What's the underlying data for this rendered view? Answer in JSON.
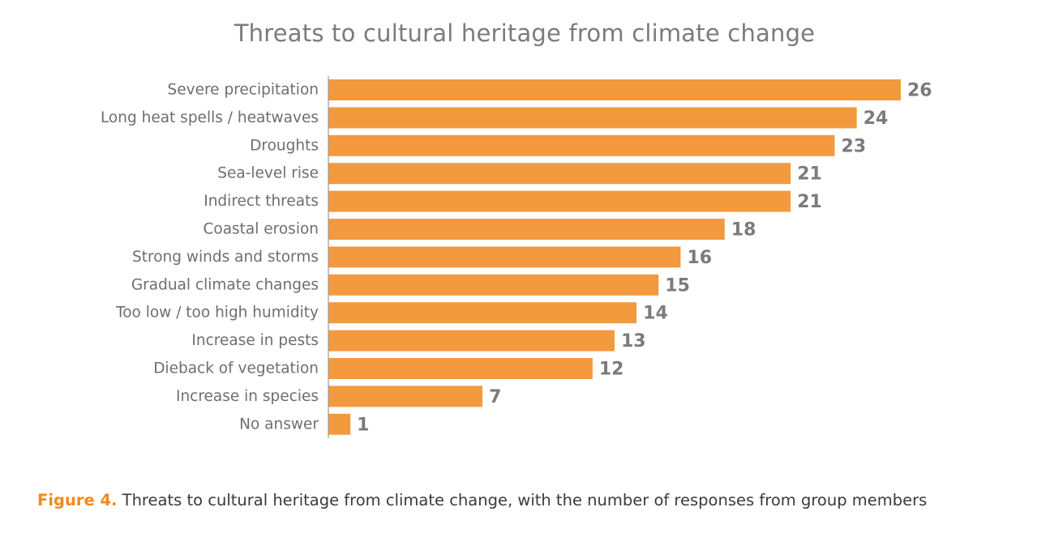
{
  "chart_data": {
    "type": "bar",
    "orientation": "horizontal",
    "title": "Threats to cultural heritage from climate change",
    "categories": [
      "Severe precipitation",
      "Long heat spells / heatwaves",
      "Droughts",
      "Sea-level rise",
      "Indirect threats",
      "Coastal erosion",
      "Strong winds and storms",
      "Gradual climate changes",
      "Too low / too high humidity",
      "Increase in pests",
      "Dieback of vegetation",
      "Increase in species",
      "No answer"
    ],
    "values": [
      26,
      24,
      23,
      21,
      21,
      18,
      16,
      15,
      14,
      13,
      12,
      7,
      1
    ],
    "xlim": [
      0,
      26
    ],
    "grid": false,
    "data_labels": true,
    "bar_color": "#f39a3f"
  },
  "caption": {
    "label": "Figure 4.",
    "text": "Threats to cultural heritage from climate change, with the number of responses from group members"
  }
}
